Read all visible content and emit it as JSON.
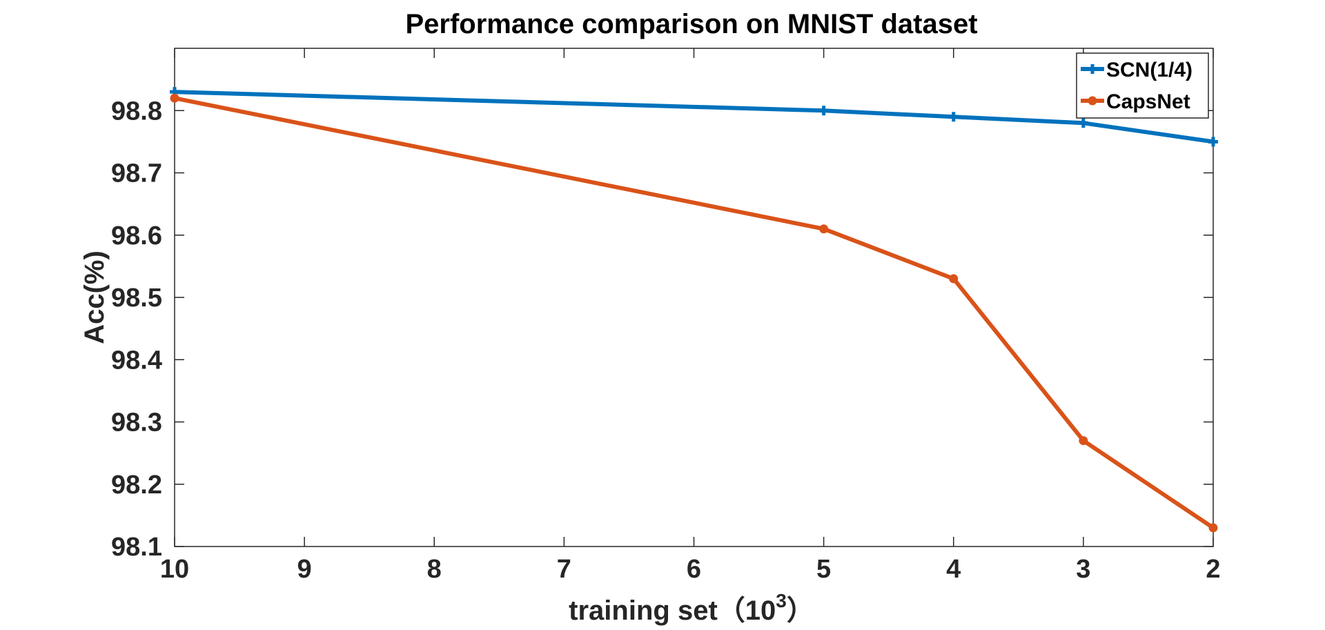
{
  "chart_data": {
    "type": "line",
    "title": "Performance comparison on MNIST dataset",
    "xlabel": "training set（10",
    "xlabel_sup": "3",
    "xlabel_end": "）",
    "ylabel": "Acc(%)",
    "x": [
      10,
      5,
      4,
      3,
      2
    ],
    "x_ticks": [
      "10",
      "9",
      "8",
      "7",
      "6",
      "5",
      "4",
      "3",
      "2"
    ],
    "x_tick_values": [
      10,
      9,
      8,
      7,
      6,
      5,
      4,
      3,
      2
    ],
    "xlim": [
      10,
      2
    ],
    "x_reversed": true,
    "y_ticks": [
      "98.1",
      "98.2",
      "98.3",
      "98.4",
      "98.5",
      "98.6",
      "98.7",
      "98.8"
    ],
    "y_tick_values": [
      98.1,
      98.2,
      98.3,
      98.4,
      98.5,
      98.6,
      98.7,
      98.8
    ],
    "ylim": [
      98.1,
      98.9
    ],
    "grid": false,
    "legend_position": "top-right",
    "series": [
      {
        "name": "SCN(1/4)",
        "color": "#0072BD",
        "marker": "plus",
        "values": [
          98.83,
          98.8,
          98.79,
          98.78,
          98.75
        ]
      },
      {
        "name": "CapsNet",
        "color": "#D95319",
        "marker": "circle",
        "values": [
          98.82,
          98.61,
          98.53,
          98.27,
          98.13
        ]
      }
    ]
  }
}
